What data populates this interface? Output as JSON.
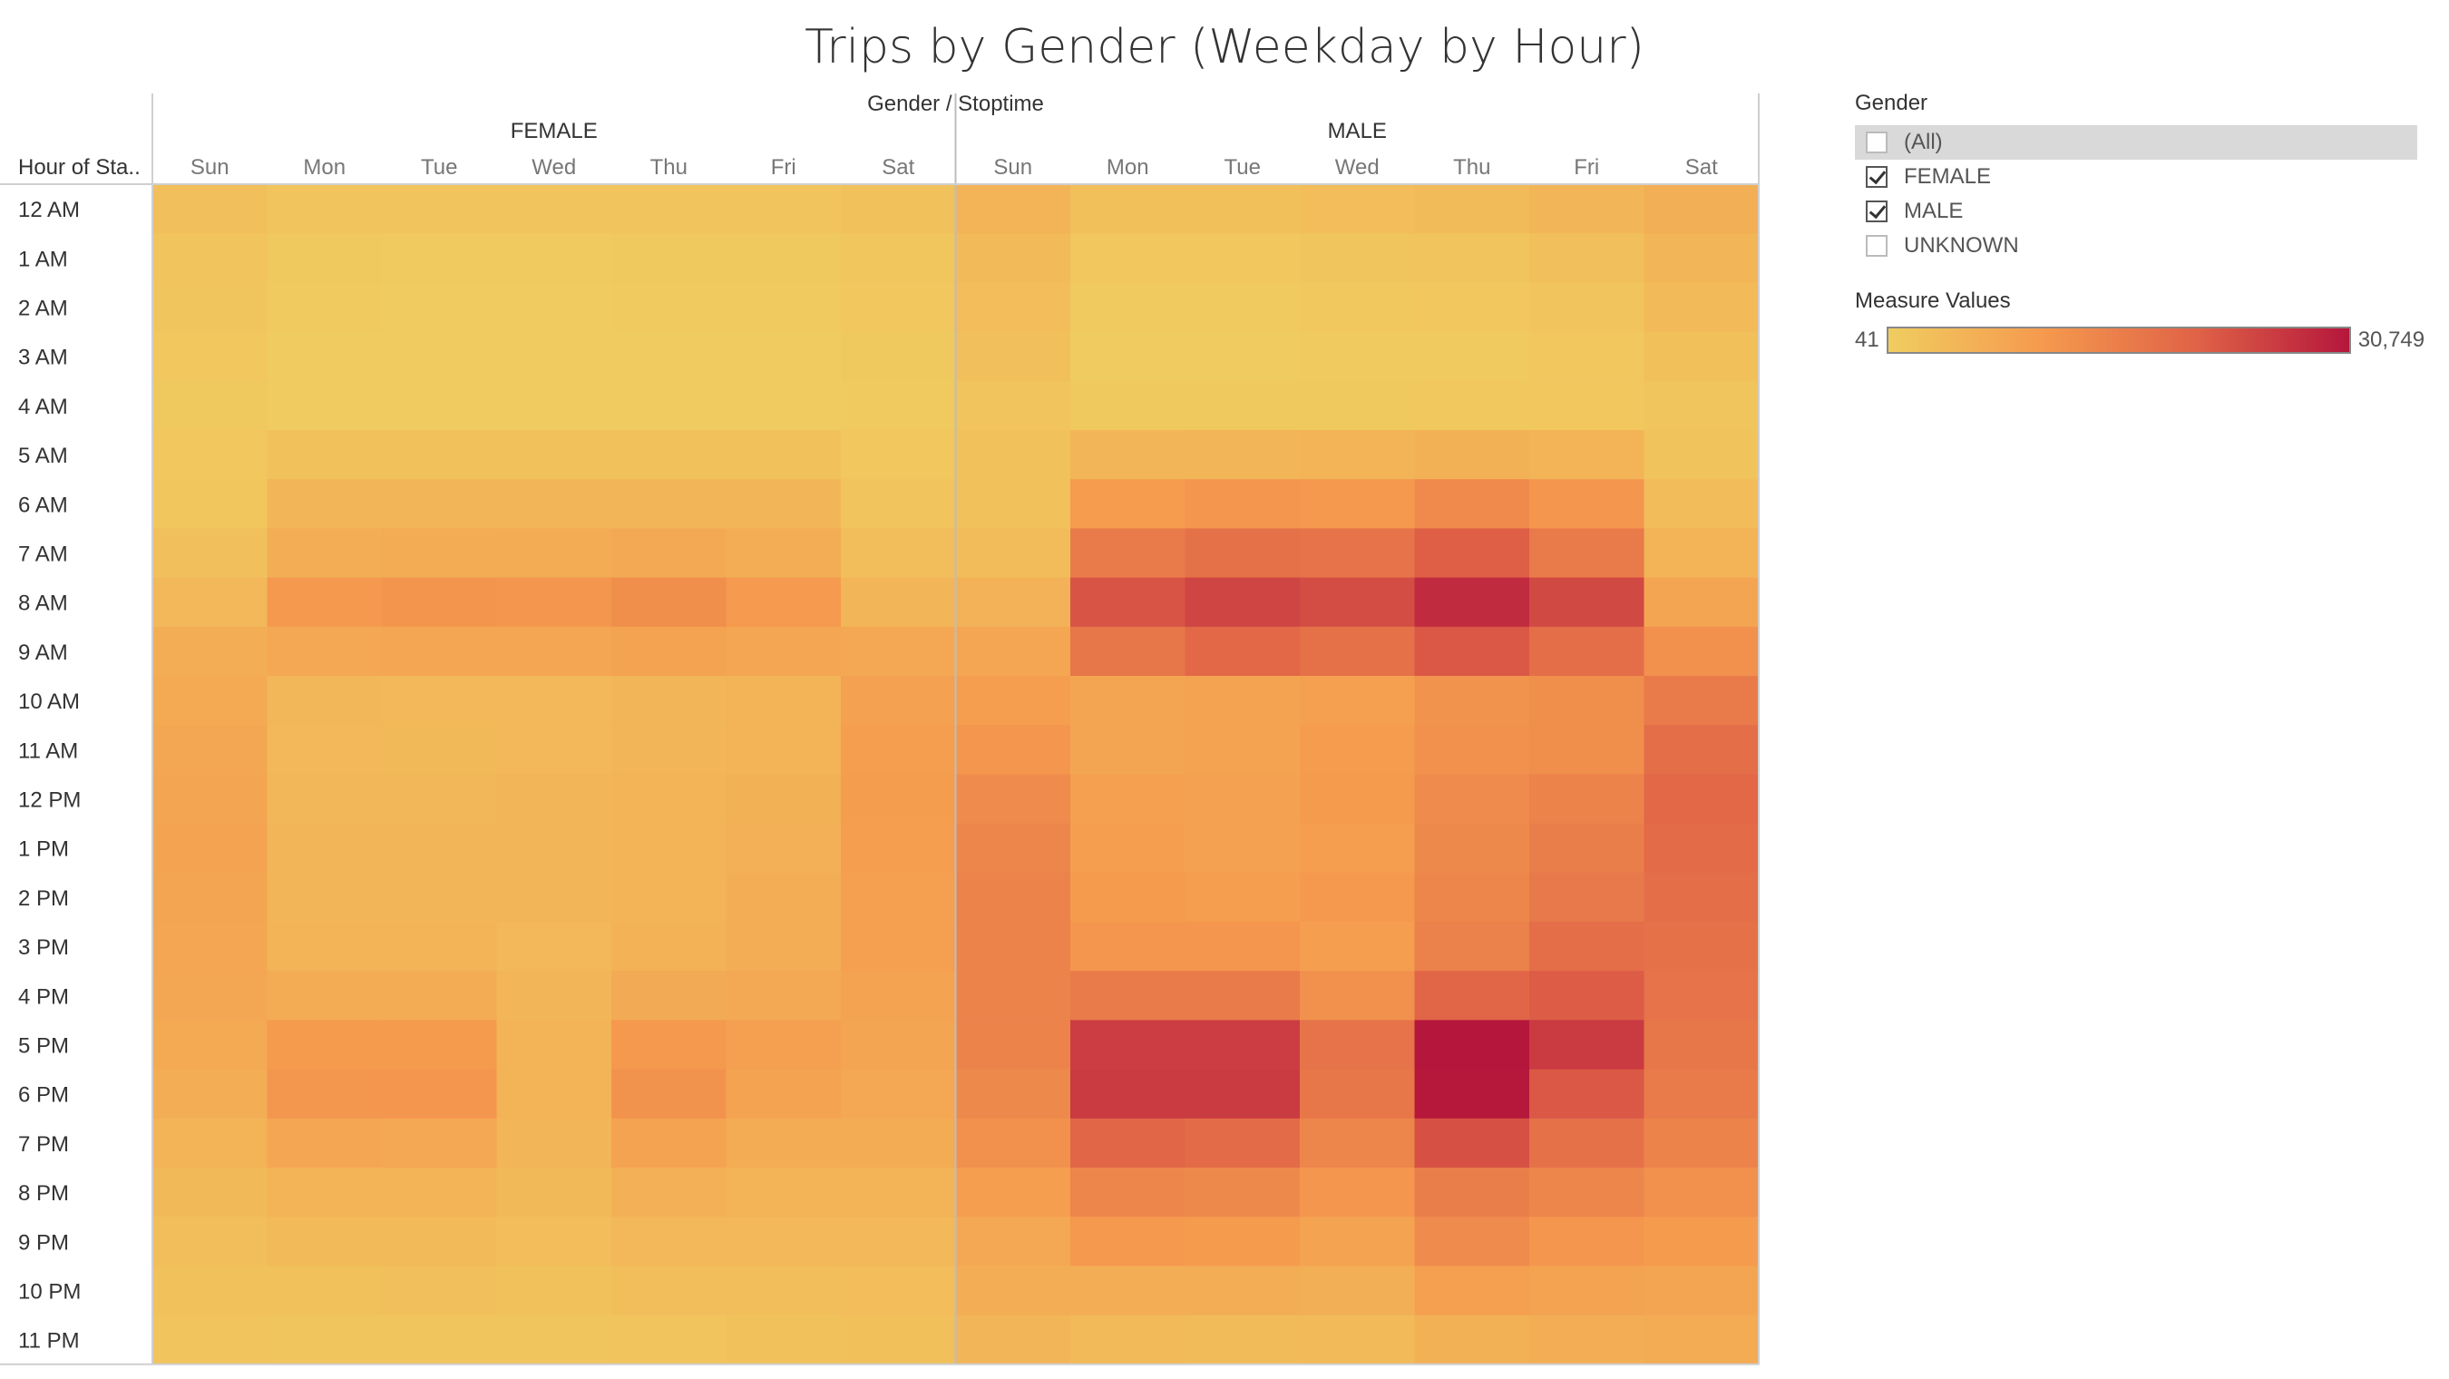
{
  "chart_data": {
    "type": "heatmap",
    "title": "Trips by Gender (Weekday by Hour)",
    "column_header": "Gender  /  Stoptime",
    "row_header": "Hour of Sta..",
    "groups": [
      "FEMALE",
      "MALE"
    ],
    "days": [
      "Sun",
      "Mon",
      "Tue",
      "Wed",
      "Thu",
      "Fri",
      "Sat"
    ],
    "hours": [
      "12 AM",
      "1 AM",
      "2 AM",
      "3 AM",
      "4 AM",
      "5 AM",
      "6 AM",
      "7 AM",
      "8 AM",
      "9 AM",
      "10 AM",
      "11 AM",
      "12 PM",
      "1 PM",
      "2 PM",
      "3 PM",
      "4 PM",
      "5 PM",
      "6 PM",
      "7 PM",
      "8 PM",
      "9 PM",
      "10 PM",
      "11 PM"
    ],
    "color_range": [
      41,
      30749
    ],
    "color_stops": [
      "#f0cd60",
      "#f59a4e",
      "#e06347",
      "#b5163c"
    ],
    "values": {
      "FEMALE": [
        [
          2800,
          1900,
          1800,
          1800,
          1900,
          1900,
          2400
        ],
        [
          1900,
          900,
          800,
          800,
          900,
          900,
          1500
        ],
        [
          1600,
          600,
          500,
          500,
          600,
          600,
          1200
        ],
        [
          1200,
          400,
          300,
          300,
          400,
          400,
          900
        ],
        [
          900,
          500,
          400,
          400,
          500,
          500,
          700
        ],
        [
          1200,
          2400,
          2300,
          2400,
          2500,
          2300,
          1200
        ],
        [
          1500,
          4700,
          4900,
          4800,
          4900,
          4600,
          1800
        ],
        [
          2600,
          6300,
          6800,
          6700,
          7200,
          6300,
          3000
        ],
        [
          4200,
          10500,
          11200,
          11000,
          12500,
          10300,
          4800
        ],
        [
          6200,
          7500,
          7800,
          7800,
          8400,
          7800,
          7500
        ],
        [
          7300,
          4500,
          4300,
          4300,
          4700,
          5200,
          8800
        ],
        [
          7700,
          4200,
          4100,
          4200,
          4700,
          5200,
          9500
        ],
        [
          8000,
          4400,
          4400,
          4700,
          5100,
          5600,
          9700
        ],
        [
          8300,
          4600,
          4600,
          4600,
          5100,
          5900,
          9500
        ],
        [
          8000,
          4900,
          4800,
          4600,
          5100,
          6200,
          9300
        ],
        [
          7900,
          5100,
          5000,
          4200,
          5500,
          6500,
          9000
        ],
        [
          7700,
          6700,
          6600,
          4600,
          7000,
          7200,
          8500
        ],
        [
          7300,
          10000,
          10000,
          5000,
          10500,
          9000,
          8000
        ],
        [
          6400,
          10800,
          11000,
          5200,
          11500,
          8400,
          7500
        ],
        [
          5200,
          7800,
          7500,
          4800,
          8500,
          6800,
          6600
        ],
        [
          4000,
          5300,
          5300,
          4000,
          5800,
          5200,
          5200
        ],
        [
          3100,
          3800,
          3800,
          3300,
          4200,
          4200,
          4200
        ],
        [
          2300,
          2500,
          2800,
          2400,
          3000,
          3100,
          3300
        ],
        [
          1900,
          1600,
          1600,
          1600,
          1900,
          2200,
          2700
        ]
      ],
      "MALE": [
        [
          5300,
          2700,
          2700,
          3300,
          3600,
          4800,
          6000
        ],
        [
          3800,
          1200,
          1200,
          1600,
          1800,
          2600,
          4800
        ],
        [
          3300,
          700,
          700,
          1100,
          1200,
          1800,
          3800
        ],
        [
          2600,
          400,
          400,
          700,
          800,
          1200,
          2700
        ],
        [
          1900,
          900,
          900,
          900,
          1100,
          1300,
          1700
        ],
        [
          2200,
          4700,
          4800,
          5000,
          5600,
          5000,
          2100
        ],
        [
          2500,
          9800,
          11000,
          10500,
          13200,
          11000,
          3400
        ],
        [
          3500,
          16000,
          18000,
          17500,
          21000,
          16200,
          5200
        ],
        [
          5400,
          22500,
          24500,
          23500,
          28000,
          24000,
          8000
        ],
        [
          7800,
          17000,
          19500,
          18000,
          22000,
          18500,
          12000
        ],
        [
          9500,
          8000,
          8500,
          9000,
          11500,
          12500,
          16000
        ],
        [
          11000,
          8000,
          8500,
          9800,
          12000,
          12500,
          18500
        ],
        [
          13000,
          9000,
          8800,
          10000,
          13000,
          14500,
          19500
        ],
        [
          14000,
          9500,
          8600,
          9500,
          13500,
          15500,
          19000
        ],
        [
          14500,
          10000,
          9500,
          10500,
          14000,
          16500,
          18500
        ],
        [
          14500,
          11000,
          11000,
          9500,
          15000,
          18500,
          18000
        ],
        [
          14500,
          16000,
          16000,
          12000,
          20000,
          21500,
          17500
        ],
        [
          14500,
          25500,
          25500,
          17500,
          30749,
          26000,
          17000
        ],
        [
          13500,
          26000,
          26000,
          17000,
          30500,
          22000,
          16000
        ],
        [
          12000,
          20000,
          19000,
          14000,
          23000,
          18000,
          14500
        ],
        [
          9500,
          14000,
          13500,
          11000,
          15500,
          14000,
          12000
        ],
        [
          7500,
          10500,
          10000,
          8500,
          13000,
          11000,
          10000
        ],
        [
          6200,
          6200,
          6500,
          6000,
          9000,
          8500,
          8000
        ],
        [
          4800,
          3800,
          3600,
          3900,
          5700,
          6500,
          6800
        ]
      ]
    }
  },
  "legend": {
    "filter_title": "Gender",
    "filter_items": [
      {
        "label": "(All)",
        "checked": false,
        "highlight": true
      },
      {
        "label": "FEMALE",
        "checked": true,
        "highlight": false
      },
      {
        "label": "MALE",
        "checked": true,
        "highlight": false
      },
      {
        "label": "UNKNOWN",
        "checked": false,
        "highlight": false
      }
    ],
    "measure_title": "Measure Values",
    "min_label": "41",
    "max_label": "30,749"
  }
}
